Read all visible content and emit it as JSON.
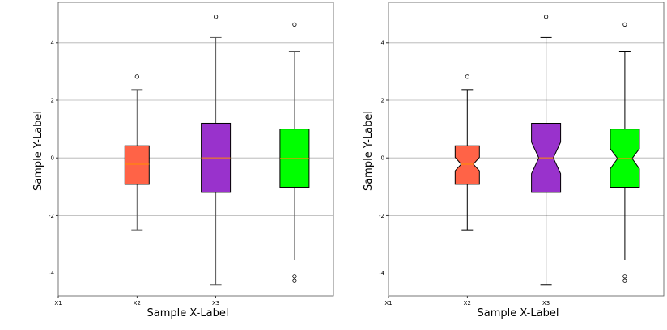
{
  "chart_data": [
    {
      "type": "boxplot",
      "notched": false,
      "xlabel": "Sample X-Label",
      "ylabel": "Sample Y-Label",
      "ylim": [
        -4.8,
        5.4
      ],
      "yticks": [
        -4,
        -2,
        0,
        2,
        4
      ],
      "grid": "horizontal",
      "categories": [
        "X1",
        "X2",
        "X3"
      ],
      "boxes": [
        {
          "position": 2,
          "whisker_low": -2.5,
          "q1": -0.92,
          "median": -0.22,
          "q3": 0.42,
          "whisker_high": 2.37,
          "fliers": [
            2.82
          ],
          "color": "#ff6347"
        },
        {
          "position": 3,
          "whisker_low": -4.4,
          "q1": -1.2,
          "median": 0.0,
          "q3": 1.2,
          "whisker_high": 4.18,
          "fliers": [
            4.9
          ],
          "color": "#9932cc"
        },
        {
          "position": 4,
          "whisker_low": -3.55,
          "q1": -1.02,
          "median": -0.02,
          "q3": 1.0,
          "whisker_high": 3.7,
          "fliers": [
            4.63,
            -4.12,
            -4.27
          ],
          "color": "#00ff00"
        }
      ]
    },
    {
      "type": "boxplot",
      "notched": true,
      "xlabel": "Sample X-Label",
      "ylabel": "Sample Y-Label",
      "ylim": [
        -4.8,
        5.4
      ],
      "yticks": [
        -4,
        -2,
        0,
        2,
        4
      ],
      "grid": "horizontal",
      "categories": [
        "X1",
        "X2",
        "X3"
      ],
      "boxes": [
        {
          "position": 2,
          "whisker_low": -2.5,
          "q1": -0.92,
          "median": -0.22,
          "q3": 0.42,
          "whisker_high": 2.37,
          "fliers": [
            2.82
          ],
          "notch_low": -0.45,
          "notch_high": 0.02,
          "color": "#ff6347"
        },
        {
          "position": 3,
          "whisker_low": -4.4,
          "q1": -1.2,
          "median": 0.0,
          "q3": 1.2,
          "whisker_high": 4.18,
          "fliers": [
            4.9
          ],
          "notch_low": -0.55,
          "notch_high": 0.55,
          "color": "#9932cc"
        },
        {
          "position": 4,
          "whisker_low": -3.55,
          "q1": -1.02,
          "median": -0.02,
          "q3": 1.0,
          "whisker_high": 3.7,
          "fliers": [
            4.63,
            -4.12,
            -4.27
          ],
          "notch_low": -0.38,
          "notch_high": 0.32,
          "color": "#00ff00"
        }
      ]
    }
  ]
}
